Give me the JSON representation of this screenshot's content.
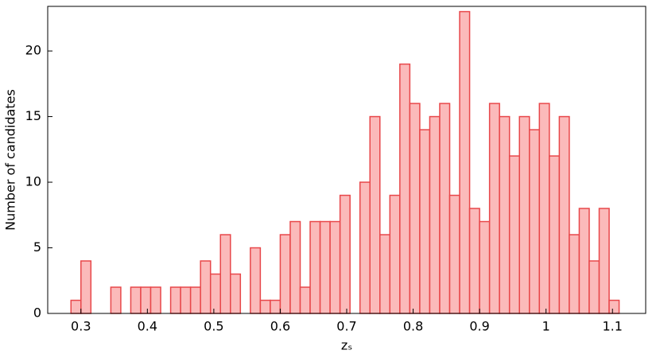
{
  "chart_data": {
    "type": "histogram",
    "xlabel": "zₛ",
    "ylabel": "Number of candidates",
    "bins": [
      0.285,
      0.3,
      0.315,
      0.33,
      0.345,
      0.36,
      0.375,
      0.39,
      0.405,
      0.42,
      0.435,
      0.45,
      0.465,
      0.48,
      0.495,
      0.51,
      0.525,
      0.54,
      0.555,
      0.57,
      0.585,
      0.6,
      0.615,
      0.63,
      0.645,
      0.66,
      0.675,
      0.69,
      0.705,
      0.72,
      0.735,
      0.75,
      0.765,
      0.78,
      0.795,
      0.81,
      0.825,
      0.84,
      0.855,
      0.87,
      0.885,
      0.9,
      0.915,
      0.93,
      0.945,
      0.96,
      0.975,
      0.99,
      1.005,
      1.02,
      1.035,
      1.05,
      1.065,
      1.08,
      1.095,
      1.11
    ],
    "values": [
      1,
      4,
      0,
      0,
      2,
      0,
      2,
      2,
      2,
      0,
      2,
      2,
      2,
      4,
      3,
      6,
      3,
      0,
      5,
      1,
      1,
      6,
      7,
      2,
      7,
      7,
      7,
      9,
      0,
      10,
      15,
      6,
      9,
      19,
      16,
      14,
      15,
      16,
      9,
      23,
      8,
      7,
      16,
      15,
      12,
      15,
      14,
      16,
      12,
      15,
      6,
      8,
      4,
      8,
      1
    ],
    "color": "#fbbaba",
    "edgecolor": "#e8474a",
    "xlim": [
      0.25,
      1.15
    ],
    "xticks": [
      0.3,
      0.4,
      0.5,
      0.6,
      0.7,
      0.8,
      0.9,
      1.0,
      1.1
    ],
    "ylim": [
      0,
      23.4
    ],
    "yticks": [
      0,
      5,
      10,
      15,
      20
    ]
  }
}
